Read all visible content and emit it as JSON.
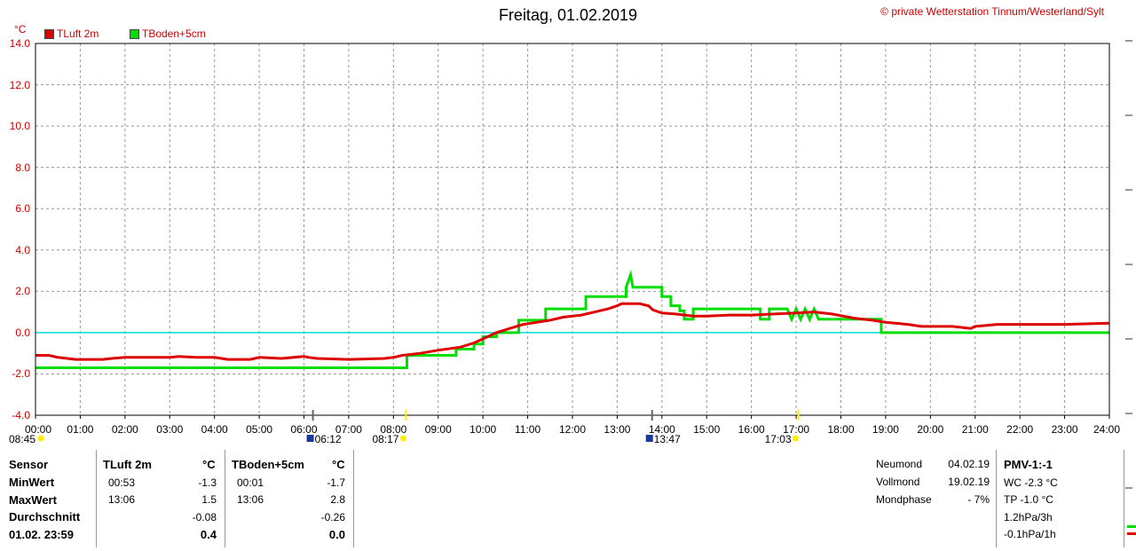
{
  "title": "Freitag, 01.02.2019",
  "credit": "© private Wetterstation Tinnum/Westerland/Sylt",
  "unit": "°C",
  "colors": {
    "tluft": "#dd0000",
    "tboden": "#00dd00",
    "zero_line": "#00dddd",
    "axis_text": "#cc0000",
    "sun": "#ffee00",
    "moon": "#1a3a9a"
  },
  "events": [
    {
      "label": "08:45",
      "icon": "sun-icon",
      "hour": 0.0
    },
    {
      "label": "06:12",
      "icon": "moon-icon",
      "hour": 6.2
    },
    {
      "label": "08:17",
      "icon": "sun-icon",
      "hour": 8.28
    },
    {
      "label": "13:47",
      "icon": "moon-icon",
      "hour": 13.78
    },
    {
      "label": "17:03",
      "icon": "sun-icon",
      "hour": 17.05
    }
  ],
  "chart_data": {
    "type": "line",
    "title": "Freitag, 01.02.2019",
    "ylabel": "°C",
    "xlabel": "",
    "ylim": [
      -4,
      14
    ],
    "xlim": [
      0,
      24
    ],
    "grid": true,
    "legend_position": "top-left",
    "y_ticks": [
      "14.0",
      "12.0",
      "10.0",
      "8.0",
      "6.0",
      "4.0",
      "2.0",
      "0.0",
      "-2.0",
      "-4.0"
    ],
    "x_ticks": [
      "00:00",
      "01:00",
      "02:00",
      "03:00",
      "04:00",
      "05:00",
      "06:00",
      "07:00",
      "08:00",
      "09:00",
      "10:00",
      "11:00",
      "12:00",
      "13:00",
      "14:00",
      "15:00",
      "16:00",
      "17:00",
      "18:00",
      "19:00",
      "20:00",
      "21:00",
      "22:00",
      "23:00",
      "24:00"
    ],
    "reference_line": {
      "y": 0.0
    },
    "series": [
      {
        "name": "TLuft 2m",
        "color": "#dd0000",
        "points": [
          [
            0,
            -1.1
          ],
          [
            0.3,
            -1.1
          ],
          [
            0.5,
            -1.2
          ],
          [
            0.9,
            -1.3
          ],
          [
            1.5,
            -1.3
          ],
          [
            1.7,
            -1.25
          ],
          [
            2.0,
            -1.2
          ],
          [
            3.0,
            -1.2
          ],
          [
            3.2,
            -1.15
          ],
          [
            3.6,
            -1.2
          ],
          [
            4.0,
            -1.2
          ],
          [
            4.3,
            -1.3
          ],
          [
            4.8,
            -1.3
          ],
          [
            5.0,
            -1.2
          ],
          [
            5.5,
            -1.25
          ],
          [
            6.0,
            -1.15
          ],
          [
            6.1,
            -1.2
          ],
          [
            6.3,
            -1.25
          ],
          [
            7.0,
            -1.3
          ],
          [
            7.8,
            -1.25
          ],
          [
            8.0,
            -1.2
          ],
          [
            8.2,
            -1.1
          ],
          [
            8.6,
            -1.0
          ],
          [
            9.0,
            -0.85
          ],
          [
            9.5,
            -0.7
          ],
          [
            9.8,
            -0.5
          ],
          [
            10.0,
            -0.3
          ],
          [
            10.3,
            0.0
          ],
          [
            10.6,
            0.2
          ],
          [
            10.9,
            0.4
          ],
          [
            11.2,
            0.5
          ],
          [
            11.5,
            0.6
          ],
          [
            11.8,
            0.75
          ],
          [
            12.2,
            0.85
          ],
          [
            12.5,
            1.0
          ],
          [
            12.8,
            1.15
          ],
          [
            13.0,
            1.3
          ],
          [
            13.1,
            1.4
          ],
          [
            13.5,
            1.4
          ],
          [
            13.7,
            1.3
          ],
          [
            13.8,
            1.1
          ],
          [
            14.0,
            0.95
          ],
          [
            14.3,
            0.9
          ],
          [
            14.7,
            0.8
          ],
          [
            15.0,
            0.8
          ],
          [
            15.5,
            0.85
          ],
          [
            16.0,
            0.85
          ],
          [
            16.5,
            0.9
          ],
          [
            17.0,
            0.95
          ],
          [
            17.4,
            1.0
          ],
          [
            17.8,
            0.9
          ],
          [
            18.3,
            0.7
          ],
          [
            18.7,
            0.6
          ],
          [
            19.0,
            0.5
          ],
          [
            19.5,
            0.4
          ],
          [
            19.8,
            0.3
          ],
          [
            20.5,
            0.3
          ],
          [
            20.9,
            0.2
          ],
          [
            21.0,
            0.3
          ],
          [
            21.5,
            0.4
          ],
          [
            22.0,
            0.4
          ],
          [
            23.0,
            0.4
          ],
          [
            23.9,
            0.45
          ],
          [
            24.0,
            0.45
          ]
        ]
      },
      {
        "name": "TBoden+5cm",
        "color": "#00dd00",
        "points": [
          [
            0,
            -1.7
          ],
          [
            8.3,
            -1.7
          ],
          [
            8.3,
            -1.1
          ],
          [
            9.4,
            -1.1
          ],
          [
            9.4,
            -0.8
          ],
          [
            9.8,
            -0.8
          ],
          [
            9.8,
            -0.55
          ],
          [
            10.0,
            -0.55
          ],
          [
            10.0,
            -0.2
          ],
          [
            10.3,
            -0.2
          ],
          [
            10.3,
            0.0
          ],
          [
            10.8,
            0.0
          ],
          [
            10.8,
            0.6
          ],
          [
            11.4,
            0.6
          ],
          [
            11.4,
            1.15
          ],
          [
            12.3,
            1.15
          ],
          [
            12.3,
            1.75
          ],
          [
            13.2,
            1.75
          ],
          [
            13.2,
            2.2
          ],
          [
            13.3,
            2.8
          ],
          [
            13.35,
            2.2
          ],
          [
            14.0,
            2.2
          ],
          [
            14.0,
            1.75
          ],
          [
            14.2,
            1.75
          ],
          [
            14.2,
            1.3
          ],
          [
            14.4,
            1.3
          ],
          [
            14.4,
            1.05
          ],
          [
            14.5,
            1.05
          ],
          [
            14.5,
            0.65
          ],
          [
            14.7,
            0.65
          ],
          [
            14.7,
            1.15
          ],
          [
            16.2,
            1.15
          ],
          [
            16.2,
            0.65
          ],
          [
            16.4,
            0.65
          ],
          [
            16.4,
            1.15
          ],
          [
            16.8,
            1.15
          ],
          [
            16.9,
            0.65
          ],
          [
            17.0,
            1.15
          ],
          [
            17.1,
            0.65
          ],
          [
            17.2,
            1.15
          ],
          [
            17.3,
            0.65
          ],
          [
            17.4,
            1.15
          ],
          [
            17.5,
            0.65
          ],
          [
            18.9,
            0.65
          ],
          [
            18.9,
            0.0
          ],
          [
            24.0,
            0.0
          ]
        ]
      }
    ]
  },
  "stats": {
    "sensor_col": {
      "header": "Sensor",
      "rows": [
        "MinWert",
        "MaxWert",
        "Durchschnitt",
        "01.02. 23:59"
      ]
    },
    "tluft_col": {
      "header": "TLuft 2m",
      "unit": "°C",
      "rows": [
        {
          "time": "00:53",
          "value": "-1.3"
        },
        {
          "time": "13:06",
          "value": "1.5"
        },
        {
          "time": "",
          "value": "-0.08"
        },
        {
          "time": "",
          "value": "0.4"
        }
      ]
    },
    "tboden_col": {
      "header": "TBoden+5cm",
      "unit": "°C",
      "rows": [
        {
          "time": "00:01",
          "value": "-1.7"
        },
        {
          "time": "13:06",
          "value": "2.8"
        },
        {
          "time": "",
          "value": "-0.26"
        },
        {
          "time": "",
          "value": "0.0"
        }
      ]
    },
    "moon": [
      {
        "label": "Neumond",
        "value": "04.02.19"
      },
      {
        "label": "Vollmond",
        "value": "19.02.19"
      },
      {
        "label": "Mondphase",
        "value": "- 7%"
      }
    ],
    "pmv": {
      "header": "PMV-1:-1",
      "lines": [
        "WC -2.3 °C",
        "TP -1.0 °C",
        "1.2hPa/3h",
        "-0.1hPa/1h"
      ]
    }
  }
}
